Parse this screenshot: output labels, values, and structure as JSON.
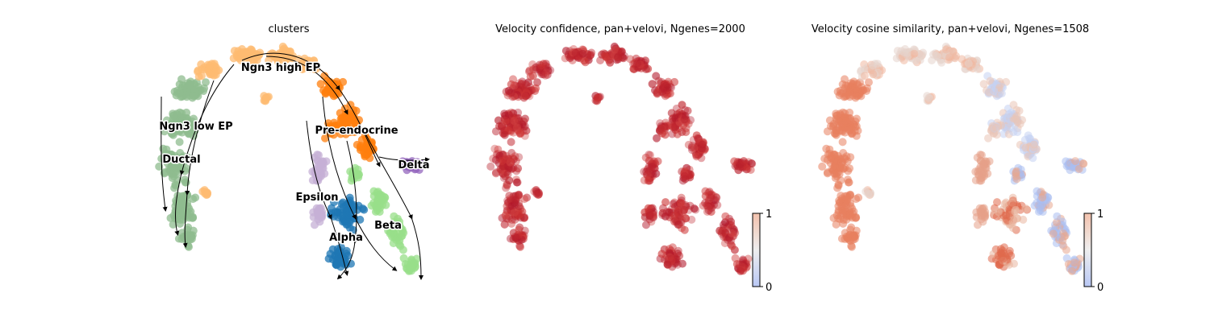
{
  "chart_data": [
    {
      "type": "scatter",
      "title": "clusters",
      "colors": {
        "Ngn3 high EP": "#fdbb72",
        "Ngn3 low EP": "#8fbc8f",
        "Ductal": "#8fbc8f",
        "Pre-endocrine": "#ff7f0e",
        "Delta": "#9467bd",
        "Epsilon": "#c5b0d5",
        "Alpha": "#1f77b4",
        "Beta": "#98df8a"
      },
      "cluster_labels": [
        "Ngn3 high EP",
        "Ngn3 low EP",
        "Pre-endocrine",
        "Ductal",
        "Delta",
        "Epsilon",
        "Beta",
        "Alpha"
      ],
      "overlay": "velocity-streamlines",
      "legend": "on data"
    },
    {
      "type": "scatter",
      "title": "Velocity confidence, pan+velovi, Ngenes=2000",
      "colorbar": {
        "min": "0",
        "max": "1",
        "cmap": "coolwarm"
      },
      "point_color": "#c0262f"
    },
    {
      "type": "scatter",
      "title": "Velocity cosine similarity, pan+velovi, Ngenes=1508",
      "colorbar": {
        "min": "0",
        "max": "1",
        "cmap": "coolwarm"
      }
    }
  ]
}
